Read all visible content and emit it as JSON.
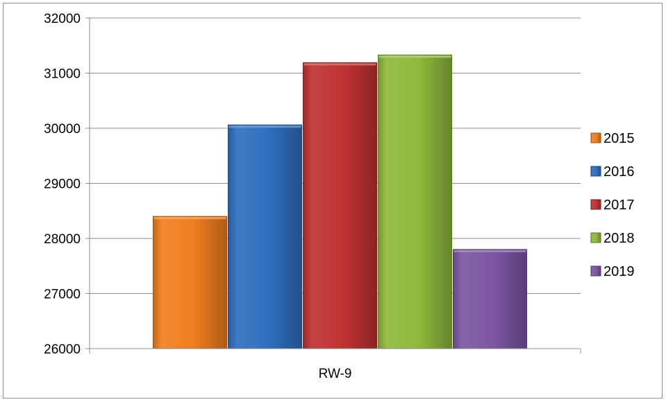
{
  "chart_data": {
    "type": "bar",
    "categories": [
      "RW-9"
    ],
    "series": [
      {
        "name": "2015",
        "values": [
          28400
        ],
        "color": "#f07f1f"
      },
      {
        "name": "2016",
        "values": [
          30060
        ],
        "color": "#2f6fbf"
      },
      {
        "name": "2017",
        "values": [
          31190
        ],
        "color": "#c03232"
      },
      {
        "name": "2018",
        "values": [
          31330
        ],
        "color": "#8fb93c"
      },
      {
        "name": "2019",
        "values": [
          27800
        ],
        "color": "#7d56a3"
      }
    ],
    "yticks": [
      "26000",
      "27000",
      "28000",
      "29000",
      "30000",
      "31000",
      "32000"
    ],
    "ylim": [
      26000,
      32000
    ],
    "grid": true,
    "legend_position": "right"
  }
}
